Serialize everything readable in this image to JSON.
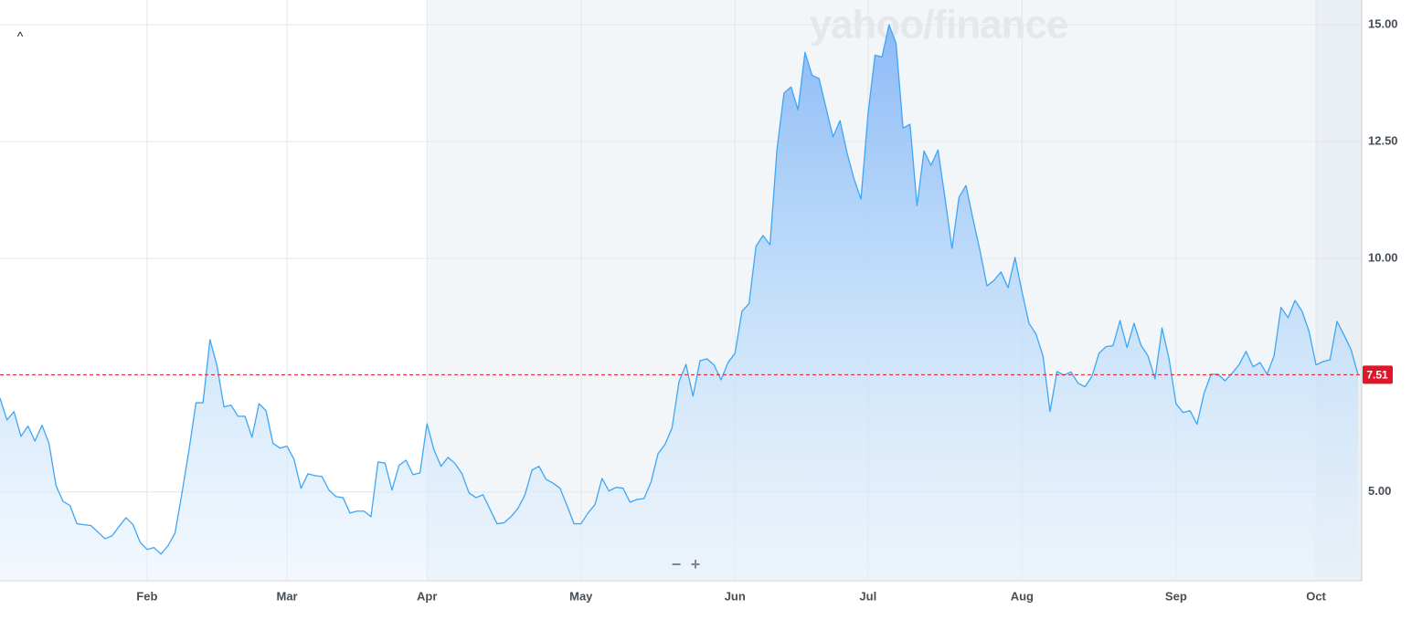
{
  "chart_data": {
    "type": "line",
    "watermark": "yahoo/finance",
    "controls": [
      "^",
      "−",
      "+"
    ],
    "categories": [
      null,
      null,
      null,
      null,
      null,
      null,
      null,
      null,
      null,
      null,
      null,
      null,
      null,
      null,
      null,
      null,
      null,
      null,
      null,
      null,
      null,
      "Feb",
      null,
      null,
      null,
      null,
      null,
      null,
      null,
      null,
      null,
      null,
      null,
      null,
      null,
      null,
      null,
      null,
      null,
      null,
      null,
      "Mar",
      null,
      null,
      null,
      null,
      null,
      null,
      null,
      null,
      null,
      null,
      null,
      null,
      null,
      null,
      null,
      null,
      null,
      null,
      null,
      "Apr",
      null,
      null,
      null,
      null,
      null,
      null,
      null,
      null,
      null,
      null,
      null,
      null,
      null,
      null,
      null,
      null,
      null,
      null,
      null,
      null,
      null,
      "May",
      null,
      null,
      null,
      null,
      null,
      null,
      null,
      null,
      null,
      null,
      null,
      null,
      null,
      null,
      null,
      null,
      null,
      null,
      null,
      null,
      null,
      "Jun",
      null,
      null,
      null,
      null,
      null,
      null,
      null,
      null,
      null,
      null,
      null,
      null,
      null,
      null,
      null,
      null,
      null,
      null,
      "Jul",
      null,
      null,
      null,
      null,
      null,
      null,
      null,
      null,
      null,
      null,
      null,
      null,
      null,
      null,
      null,
      null,
      null,
      null,
      null,
      null,
      null,
      "Aug",
      null,
      null,
      null,
      null,
      null,
      null,
      null,
      null,
      null,
      null,
      null,
      null,
      null,
      null,
      null,
      null,
      null,
      null,
      null,
      null,
      null,
      "Sep",
      null,
      null,
      null,
      null,
      null,
      null,
      null,
      null,
      null,
      null,
      null,
      null,
      null,
      null,
      null,
      null,
      null,
      null,
      null,
      "Oct",
      null,
      null,
      null,
      null,
      null,
      null
    ],
    "values": [
      7.01,
      6.54,
      6.72,
      6.19,
      6.41,
      6.09,
      6.43,
      6.04,
      5.14,
      4.8,
      4.71,
      4.32,
      4.3,
      4.28,
      4.14,
      4.0,
      4.06,
      4.26,
      4.45,
      4.3,
      3.93,
      3.77,
      3.81,
      3.67,
      3.85,
      4.12,
      4.98,
      5.9,
      6.91,
      6.91,
      8.26,
      7.7,
      6.82,
      6.86,
      6.62,
      6.62,
      6.17,
      6.89,
      6.74,
      6.04,
      5.94,
      5.98,
      5.7,
      5.08,
      5.39,
      5.35,
      5.33,
      5.04,
      4.9,
      4.88,
      4.55,
      4.59,
      4.59,
      4.47,
      5.64,
      5.62,
      5.04,
      5.57,
      5.68,
      5.37,
      5.41,
      6.46,
      5.9,
      5.55,
      5.74,
      5.61,
      5.39,
      4.98,
      4.88,
      4.94,
      4.63,
      4.32,
      4.34,
      4.47,
      4.65,
      4.94,
      5.47,
      5.55,
      5.27,
      5.19,
      5.08,
      4.71,
      4.32,
      4.32,
      4.55,
      4.73,
      5.29,
      5.02,
      5.1,
      5.08,
      4.78,
      4.84,
      4.86,
      5.21,
      5.82,
      6.02,
      6.37,
      7.36,
      7.73,
      7.05,
      7.81,
      7.85,
      7.72,
      7.4,
      7.77,
      7.97,
      8.87,
      9.03,
      10.26,
      10.49,
      10.29,
      12.34,
      13.54,
      13.67,
      13.18,
      14.41,
      13.92,
      13.85,
      13.22,
      12.6,
      12.95,
      12.26,
      11.7,
      11.27,
      13.09,
      14.35,
      14.31,
      15.0,
      14.61,
      12.79,
      12.87,
      11.13,
      12.3,
      11.99,
      12.32,
      11.29,
      10.21,
      11.31,
      11.56,
      10.84,
      10.16,
      9.41,
      9.53,
      9.71,
      9.37,
      10.02,
      9.28,
      8.61,
      8.38,
      7.91,
      6.72,
      7.58,
      7.5,
      7.57,
      7.33,
      7.25,
      7.48,
      7.97,
      8.11,
      8.13,
      8.67,
      8.09,
      8.61,
      8.14,
      7.91,
      7.42,
      8.51,
      7.85,
      6.89,
      6.7,
      6.74,
      6.45,
      7.11,
      7.52,
      7.52,
      7.38,
      7.54,
      7.72,
      8.01,
      7.68,
      7.77,
      7.52,
      7.91,
      8.95,
      8.73,
      9.1,
      8.87,
      8.44,
      7.72,
      7.79,
      7.83,
      8.65,
      8.36,
      8.05,
      7.51
    ],
    "color": "#3ea6f5",
    "reference_line": 7.51,
    "reference_color": "#e0162b",
    "ylim": [
      3.1,
      15.53
    ],
    "yticks": [
      {
        "value": 5,
        "label": "5.00"
      },
      {
        "value": 10,
        "label": "10.00"
      },
      {
        "value": 12.5,
        "label": "12.50"
      },
      {
        "value": 15,
        "label": "15.00"
      }
    ],
    "grid": true
  }
}
